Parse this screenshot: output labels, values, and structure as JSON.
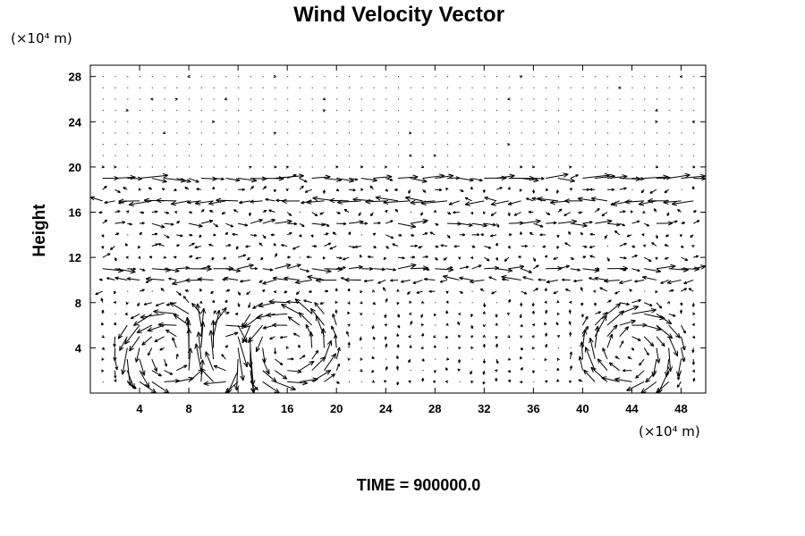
{
  "chart_data": {
    "type": "vector_field",
    "title": "Wind Velocity Vector",
    "ylabel": "Height",
    "x_unit": "(×10⁴ m)",
    "y_unit": "(×10⁴ m)",
    "xlim": [
      0,
      50
    ],
    "ylim": [
      0,
      29
    ],
    "x_ticks": [
      "4",
      "8",
      "12",
      "16",
      "20",
      "24",
      "28",
      "32",
      "36",
      "40",
      "44",
      "48"
    ],
    "x_tick_values": [
      4,
      8,
      12,
      16,
      20,
      24,
      28,
      32,
      36,
      40,
      44,
      48
    ],
    "y_ticks": [
      "4",
      "8",
      "12",
      "16",
      "20",
      "24",
      "28"
    ],
    "y_tick_values": [
      4,
      8,
      12,
      16,
      20,
      24,
      28
    ],
    "grid_dx": 1,
    "grid_dy": 1,
    "features": {
      "circulation_cells": [
        {
          "center_x": 6.5,
          "center_y": 3.5,
          "radius": 3.5
        },
        {
          "center_x": 10.5,
          "center_y": 3.5,
          "radius": 2.5
        },
        {
          "center_x": 16,
          "center_y": 4,
          "radius": 3.5
        },
        {
          "center_x": 44,
          "center_y": 3.5,
          "radius": 3.5
        }
      ],
      "jets": [
        {
          "y": 19,
          "speed": 2.0
        },
        {
          "y": 17,
          "speed": -1.8
        },
        {
          "y": 15,
          "speed": 1.2
        },
        {
          "y": 11,
          "speed": 1.6
        },
        {
          "y": 10,
          "speed": -1.4
        }
      ]
    },
    "caption": "TIME = 900000.0",
    "line_color": "#000000",
    "background": "#ffffff"
  }
}
